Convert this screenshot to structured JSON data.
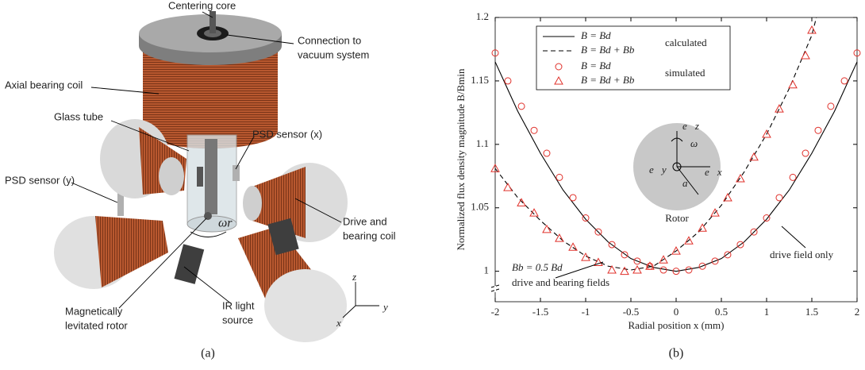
{
  "panel_a": {
    "labels": {
      "centering_core": "Centering core",
      "connection": [
        "Connection to",
        "vacuum system"
      ],
      "axial_coil": "Axial bearing coil",
      "glass_tube": "Glass tube",
      "psd_x": "PSD sensor (x)",
      "psd_y": "PSD sensor (y)",
      "drive_coil": [
        "Drive and",
        "bearing coil"
      ],
      "omega_r": "ωr",
      "rotor": [
        "Magnetically",
        "levitated rotor"
      ],
      "ir": [
        "IR light",
        "source"
      ],
      "axis_z": "z",
      "axis_y": "y",
      "axis_x": "x"
    },
    "caption": "(a)"
  },
  "chart_data": {
    "type": "line",
    "caption": "(b)",
    "xlabel": "Radial position x (mm)",
    "ylabel": "Normalized flux density magnitude B/Bmin",
    "xlim": [
      -2,
      2
    ],
    "ylim": [
      0.976,
      1.2
    ],
    "xticks": [
      -2,
      -1.5,
      -1,
      -0.5,
      0,
      0.5,
      1,
      1.5,
      2
    ],
    "yticks": [
      1,
      1.05,
      1.1,
      1.15,
      1.2
    ],
    "legend_groups": [
      "calculated",
      "simulated"
    ],
    "series": [
      {
        "name": "B = Bd",
        "kind": "line",
        "dash": false,
        "color": "#000000",
        "x": [
          -2,
          -1.75,
          -1.5,
          -1.25,
          -1,
          -0.75,
          -0.5,
          -0.25,
          0,
          0.25,
          0.5,
          0.75,
          1,
          1.25,
          1.5,
          1.75,
          2
        ],
        "values": [
          1.165,
          1.126,
          1.093,
          1.064,
          1.041,
          1.023,
          1.01,
          1.003,
          1,
          1.003,
          1.01,
          1.023,
          1.041,
          1.064,
          1.093,
          1.126,
          1.165
        ]
      },
      {
        "name": "B = Bd + Bb",
        "kind": "line",
        "dash": true,
        "color": "#000000",
        "x": [
          -2,
          -1.75,
          -1.5,
          -1.25,
          -1,
          -0.75,
          -0.5,
          -0.25,
          0,
          0.25,
          0.5,
          0.75,
          1,
          1.25,
          1.5,
          1.55
        ],
        "values": [
          1.081,
          1.058,
          1.04,
          1.024,
          1.012,
          1.004,
          1.001,
          1.004,
          1.016,
          1.031,
          1.052,
          1.078,
          1.108,
          1.144,
          1.186,
          1.2
        ]
      },
      {
        "name": "B = Bd",
        "kind": "marker",
        "marker": "circle",
        "color": "#e0302a",
        "x": [
          -2,
          -1.86,
          -1.71,
          -1.57,
          -1.43,
          -1.29,
          -1.14,
          -1,
          -0.86,
          -0.71,
          -0.57,
          -0.43,
          -0.29,
          -0.14,
          0,
          0.14,
          0.29,
          0.43,
          0.57,
          0.71,
          0.86,
          1,
          1.14,
          1.29,
          1.43,
          1.57,
          1.71,
          1.86,
          2
        ],
        "values": [
          1.172,
          1.15,
          1.13,
          1.111,
          1.093,
          1.074,
          1.058,
          1.042,
          1.031,
          1.021,
          1.013,
          1.008,
          1.004,
          1.001,
          1,
          1.001,
          1.004,
          1.008,
          1.013,
          1.021,
          1.031,
          1.042,
          1.058,
          1.074,
          1.093,
          1.111,
          1.13,
          1.15,
          1.172
        ]
      },
      {
        "name": "B = Bd + Bb",
        "kind": "marker",
        "marker": "triangle",
        "color": "#e0302a",
        "x": [
          -2,
          -1.86,
          -1.71,
          -1.57,
          -1.43,
          -1.29,
          -1.14,
          -1,
          -0.86,
          -0.71,
          -0.57,
          -0.43,
          -0.29,
          -0.14,
          0,
          0.14,
          0.29,
          0.43,
          0.57,
          0.71,
          0.86,
          1,
          1.14,
          1.29,
          1.43,
          1.5
        ],
        "values": [
          1.081,
          1.066,
          1.054,
          1.046,
          1.033,
          1.026,
          1.019,
          1.011,
          1.007,
          1.001,
          1,
          1.001,
          1.004,
          1.009,
          1.016,
          1.024,
          1.034,
          1.046,
          1.058,
          1.073,
          1.09,
          1.108,
          1.128,
          1.147,
          1.17,
          1.19
        ]
      }
    ],
    "annotations": {
      "ratio": "Bb = 0.5 Bd",
      "both": "drive and bearing fields",
      "drive": "drive field only"
    },
    "inset": {
      "label": "Rotor",
      "ez": "e⃗z",
      "omega": "ω",
      "ey": "e⃗y",
      "ex": "e⃗x",
      "a": "a"
    }
  }
}
